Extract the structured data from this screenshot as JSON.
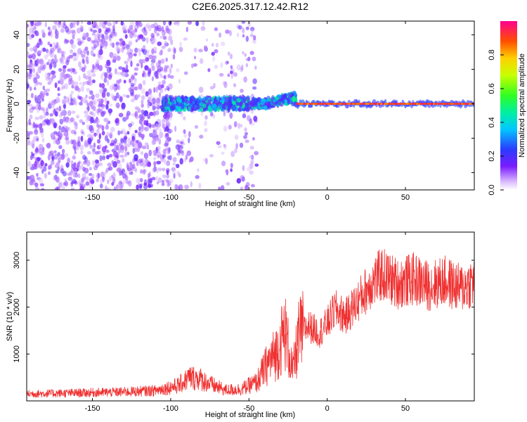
{
  "figure": {
    "title": "C2E6.2025.317.12.42.R12"
  },
  "colors": {
    "snr_line": "#f03030",
    "frame": "#000000",
    "background": "#ffffff"
  },
  "chart_data": [
    {
      "type": "heatmap",
      "title": "C2E6.2025.317.12.42.R12",
      "xlabel": "Height of straight line (km)",
      "ylabel": "Frequency (Hz)",
      "xlim": [
        -192,
        94
      ],
      "ylim": [
        -50,
        48
      ],
      "x_ticks": [
        -150,
        -100,
        -50,
        0,
        50
      ],
      "y_ticks": [
        -40,
        -20,
        0,
        20,
        40
      ],
      "colorbar": {
        "label": "Normalized spectral amplitude",
        "range": [
          0.0,
          1.0
        ],
        "ticks": [
          0.0,
          0.2,
          0.4,
          0.6,
          0.8
        ],
        "tick_labels": [
          "0.0",
          "0.2",
          "0.4",
          "0.6",
          "0.8"
        ],
        "colormap": "white-violet-blue-cyan-green-yellow-red-magenta"
      },
      "features": [
        {
          "x_range": [
            -192,
            -45
          ],
          "y_range": [
            -50,
            48
          ],
          "amplitude": 0.15,
          "description_shown": false
        },
        {
          "x_range": [
            -100,
            -20
          ],
          "y_range": [
            -5,
            8
          ],
          "amplitude": 0.4
        },
        {
          "x_range": [
            -20,
            94
          ],
          "y_range": [
            -1,
            1
          ],
          "amplitude": 0.9
        }
      ]
    },
    {
      "type": "line",
      "xlabel": "Height of straight line (km)",
      "ylabel": "SNR (10 * v/v)",
      "xlim": [
        -192,
        94
      ],
      "ylim": [
        0,
        3600
      ],
      "x_ticks": [
        -150,
        -100,
        -50,
        0,
        50
      ],
      "y_ticks": [
        1000,
        2000,
        3000
      ],
      "series": [
        {
          "x": [
            -192,
            -160,
            -130,
            -110,
            -95,
            -88,
            -82,
            -75,
            -65,
            -55,
            -45,
            -38,
            -32,
            -27,
            -22,
            -18,
            -12,
            -5,
            0,
            5,
            12,
            20,
            28,
            35,
            45,
            55,
            65,
            75,
            85,
            94
          ],
          "values": [
            150,
            170,
            190,
            220,
            330,
            500,
            480,
            360,
            230,
            250,
            400,
            800,
            1050,
            1500,
            620,
            1400,
            1600,
            1450,
            1650,
            1950,
            1800,
            2150,
            2500,
            2700,
            2500,
            2600,
            2450,
            2550,
            2400,
            2550
          ]
        }
      ]
    }
  ]
}
